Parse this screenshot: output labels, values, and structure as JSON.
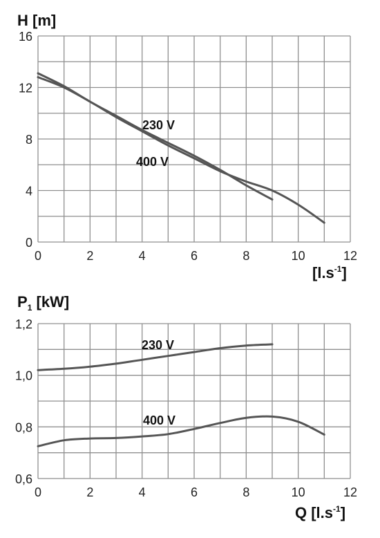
{
  "chart_data": [
    {
      "type": "line",
      "ytitle": "H [m]",
      "xtitle": "[l.s",
      "xtitle_sup": "-1",
      "xtitle_end": "]",
      "xlim": [
        0,
        12
      ],
      "ylim": [
        0,
        16
      ],
      "xticks": [
        "0",
        "2",
        "4",
        "6",
        "8",
        "10",
        "12"
      ],
      "yticks": [
        "0",
        "4",
        "8",
        "12",
        "16"
      ],
      "grid": true,
      "series": [
        {
          "name": "230 V",
          "x": [
            0,
            1,
            2,
            3,
            4,
            5,
            6,
            7,
            8,
            9,
            10,
            11
          ],
          "y": [
            12.8,
            12.0,
            10.9,
            9.7,
            8.6,
            7.5,
            6.5,
            5.5,
            4.7,
            4.0,
            2.9,
            1.5
          ]
        },
        {
          "name": "400 V",
          "x": [
            0,
            1,
            2,
            3,
            4,
            5,
            6,
            7,
            8,
            9
          ],
          "y": [
            13.1,
            12.1,
            10.9,
            9.8,
            8.7,
            7.7,
            6.7,
            5.6,
            4.4,
            3.3
          ]
        }
      ]
    },
    {
      "type": "line",
      "ytitle": "P",
      "ytitle_sub": "1",
      "ytitle_end": " [kW]",
      "xtitle": "Q [l.s",
      "xtitle_sup": "-1",
      "xtitle_end": "]",
      "xlim": [
        0,
        12
      ],
      "ylim": [
        0.6,
        1.2
      ],
      "xticks": [
        "0",
        "2",
        "4",
        "6",
        "8",
        "10",
        "12"
      ],
      "yticks": [
        "0,6",
        "0,8",
        "1,0",
        "1,2"
      ],
      "grid": true,
      "series": [
        {
          "name": "230 V",
          "x": [
            0,
            1,
            2,
            3,
            4,
            5,
            6,
            7,
            8,
            9
          ],
          "y": [
            1.02,
            1.025,
            1.033,
            1.045,
            1.06,
            1.075,
            1.09,
            1.105,
            1.115,
            1.12
          ]
        },
        {
          "name": "400 V",
          "x": [
            0,
            1,
            2,
            3,
            4,
            5,
            6,
            7,
            8,
            9,
            10,
            11
          ],
          "y": [
            0.725,
            0.748,
            0.755,
            0.757,
            0.763,
            0.772,
            0.792,
            0.815,
            0.835,
            0.84,
            0.82,
            0.77
          ]
        }
      ]
    }
  ]
}
